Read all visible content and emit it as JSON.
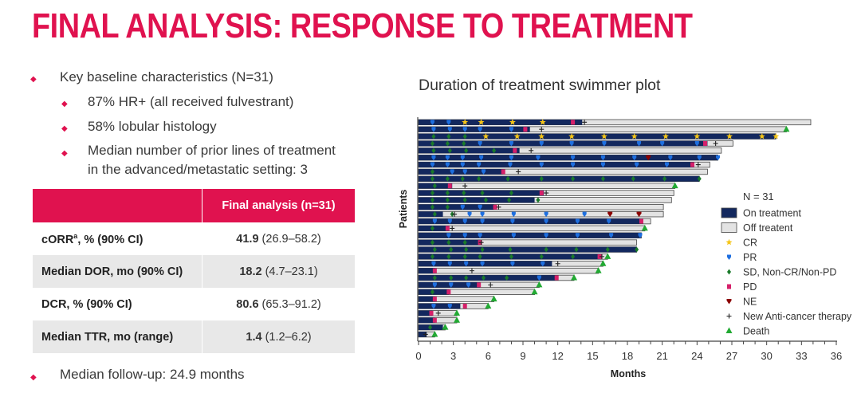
{
  "slide": {
    "title": "FINAL ANALYSIS: RESPONSE TO TREATMENT",
    "bullets": [
      {
        "text": "Key baseline characteristics (N=31)",
        "level": 1
      },
      {
        "text": "87% HR+ (all received fulvestrant)",
        "level": 2
      },
      {
        "text": "58% lobular histology",
        "level": 2
      },
      {
        "text": "Median number of prior lines of treatment",
        "level": 2
      },
      {
        "text": "in the advanced/metastatic setting: 3",
        "level": 2
      }
    ],
    "footer_bullet": "Median follow-up: 24.9 months",
    "accent_color": "#e0124f"
  },
  "table": {
    "header": [
      "",
      "Final analysis (n=31)"
    ],
    "rows": [
      {
        "label": "cORR",
        "sup": "a",
        "label_rest": ", % (90% CI)",
        "value": "41.9",
        "ci": "(26.9–58.2)"
      },
      {
        "label": "Median DOR, mo (90% CI)",
        "sup": "",
        "label_rest": "",
        "value": "18.2",
        "ci": "(4.7–23.1)"
      },
      {
        "label": "DCR, % (90% CI)",
        "sup": "",
        "label_rest": "",
        "value": "80.6",
        "ci": "(65.3–91.2)"
      },
      {
        "label": "Median TTR, mo (range)",
        "sup": "",
        "label_rest": "",
        "value": "1.4",
        "ci": "(1.2–6.2)"
      }
    ]
  },
  "chart_data": {
    "type": "swimmer",
    "title": "Duration of treatment swimmer plot",
    "xlabel": "Months",
    "ylabel": "Patients",
    "xlim": [
      0,
      36
    ],
    "xticks": [
      0,
      3,
      6,
      9,
      12,
      15,
      18,
      21,
      24,
      27,
      30,
      33,
      36
    ],
    "legend": {
      "heading": "N = 31",
      "position": "right",
      "items": [
        {
          "key": "on",
          "label": "On treatment",
          "color": "#13285e"
        },
        {
          "key": "off",
          "label": "Off treatent",
          "color": "#e3e3e3"
        },
        {
          "key": "CR",
          "label": "CR",
          "color": "#f5c518"
        },
        {
          "key": "PR",
          "label": "PR",
          "color": "#1e6fe0"
        },
        {
          "key": "SD",
          "label": "SD, Non-CR/Non-PD",
          "color": "#1a7a2a"
        },
        {
          "key": "PD",
          "label": "PD",
          "color": "#d6206a"
        },
        {
          "key": "NE",
          "label": "NE",
          "color": "#8b0000"
        },
        {
          "key": "NEW",
          "label": "New Anti-cancer therapy",
          "color": "#222222"
        },
        {
          "key": "DEATH",
          "label": "Death",
          "color": "#22aa33"
        }
      ]
    },
    "patients": [
      {
        "on": 14.1,
        "total": 33.8,
        "markers": [
          [
            1.2,
            "PR"
          ],
          [
            2.6,
            "PR"
          ],
          [
            4,
            "CR"
          ],
          [
            5.4,
            "CR"
          ],
          [
            8.1,
            "CR"
          ],
          [
            10.7,
            "CR"
          ],
          [
            13.3,
            "PD"
          ],
          [
            14.3,
            "NEW"
          ]
        ]
      },
      {
        "on": 9.6,
        "total": 31.7,
        "markers": [
          [
            1.3,
            "PR"
          ],
          [
            2.7,
            "PR"
          ],
          [
            4,
            "PR"
          ],
          [
            5.3,
            "PR"
          ],
          [
            8,
            "PR"
          ],
          [
            9.2,
            "PD"
          ],
          [
            10.6,
            "NEW"
          ],
          [
            31.7,
            "DEATH"
          ]
        ]
      },
      {
        "on": 30.8,
        "total": 30.8,
        "markers": [
          [
            1.3,
            "SD"
          ],
          [
            2.6,
            "SD"
          ],
          [
            4,
            "SD"
          ],
          [
            5.8,
            "CR"
          ],
          [
            8.5,
            "CR"
          ],
          [
            10.6,
            "CR"
          ],
          [
            13.2,
            "CR"
          ],
          [
            16,
            "CR"
          ],
          [
            18.6,
            "CR"
          ],
          [
            21.3,
            "CR"
          ],
          [
            24,
            "CR"
          ],
          [
            26.8,
            "CR"
          ],
          [
            29.6,
            "CR"
          ],
          [
            30.8,
            "CR"
          ]
        ]
      },
      {
        "on": 24.9,
        "total": 27.1,
        "markers": [
          [
            1.2,
            "SD"
          ],
          [
            2.5,
            "SD"
          ],
          [
            3.9,
            "SD"
          ],
          [
            5.3,
            "PR"
          ],
          [
            8,
            "PR"
          ],
          [
            10.6,
            "PR"
          ],
          [
            13.2,
            "PR"
          ],
          [
            16,
            "PR"
          ],
          [
            19,
            "PR"
          ],
          [
            21,
            "PR"
          ],
          [
            24,
            "PR"
          ],
          [
            24.7,
            "PD"
          ],
          [
            25.6,
            "NEW"
          ]
        ]
      },
      {
        "on": 8.7,
        "total": 26.1,
        "markers": [
          [
            1.3,
            "SD"
          ],
          [
            2.7,
            "SD"
          ],
          [
            4.1,
            "SD"
          ],
          [
            6.5,
            "SD"
          ],
          [
            8.3,
            "PD"
          ],
          [
            9.7,
            "NEW"
          ]
        ]
      },
      {
        "on": 25.8,
        "total": 25.8,
        "markers": [
          [
            1.3,
            "PR"
          ],
          [
            2.5,
            "PR"
          ],
          [
            3.8,
            "PR"
          ],
          [
            5.4,
            "PR"
          ],
          [
            8,
            "PR"
          ],
          [
            10.3,
            "PR"
          ],
          [
            13.3,
            "PR"
          ],
          [
            15.9,
            "PR"
          ],
          [
            18.6,
            "PR"
          ],
          [
            19.8,
            "NE"
          ],
          [
            21.7,
            "PR"
          ],
          [
            24.2,
            "PR"
          ],
          [
            25.8,
            "PR"
          ]
        ]
      },
      {
        "on": 23.7,
        "total": 25.1,
        "markers": [
          [
            1.2,
            "PR"
          ],
          [
            2.5,
            "PR"
          ],
          [
            3.8,
            "PR"
          ],
          [
            5.2,
            "PR"
          ],
          [
            7.9,
            "PR"
          ],
          [
            10.6,
            "PR"
          ],
          [
            13.3,
            "PR"
          ],
          [
            15.9,
            "PR"
          ],
          [
            18.8,
            "PR"
          ],
          [
            21.4,
            "PR"
          ],
          [
            23.6,
            "PD"
          ],
          [
            24.1,
            "NEW"
          ]
        ]
      },
      {
        "on": 7.3,
        "total": 24.9,
        "markers": [
          [
            1.2,
            "SD"
          ],
          [
            2.9,
            "PR"
          ],
          [
            4,
            "PR"
          ],
          [
            5.6,
            "PR"
          ],
          [
            7.3,
            "PD"
          ],
          [
            8.6,
            "NEW"
          ]
        ]
      },
      {
        "on": 24.2,
        "total": 24.2,
        "markers": [
          [
            1.2,
            "SD"
          ],
          [
            2.5,
            "SD"
          ],
          [
            3.8,
            "SD"
          ],
          [
            5.2,
            "SD"
          ],
          [
            7.7,
            "SD"
          ],
          [
            10.6,
            "SD"
          ],
          [
            13.3,
            "SD"
          ],
          [
            15.9,
            "SD"
          ],
          [
            18.5,
            "SD"
          ],
          [
            21.2,
            "SD"
          ],
          [
            24.2,
            "SD"
          ]
        ]
      },
      {
        "on": 2.9,
        "total": 22.1,
        "markers": [
          [
            1.4,
            "SD"
          ],
          [
            2.7,
            "PD"
          ],
          [
            4,
            "NEW"
          ],
          [
            22.1,
            "DEATH"
          ]
        ]
      },
      {
        "on": 10.8,
        "total": 22.0,
        "markers": [
          [
            1.2,
            "SD"
          ],
          [
            2.5,
            "SD"
          ],
          [
            3.9,
            "SD"
          ],
          [
            5.5,
            "SD"
          ],
          [
            8,
            "SD"
          ],
          [
            10.6,
            "PD"
          ],
          [
            11,
            "NEW"
          ]
        ]
      },
      {
        "on": 10.0,
        "total": 21.8,
        "markers": [
          [
            1.2,
            "SD"
          ],
          [
            2.5,
            "SD"
          ],
          [
            4,
            "SD"
          ],
          [
            5.8,
            "SD"
          ],
          [
            7.8,
            "SD"
          ],
          [
            10.3,
            "SD"
          ]
        ]
      },
      {
        "on": 6.5,
        "total": 21.1,
        "markers": [
          [
            1.2,
            "SD"
          ],
          [
            2.5,
            "SD"
          ],
          [
            3.8,
            "PR"
          ],
          [
            5.3,
            "PR"
          ],
          [
            6.6,
            "PD"
          ],
          [
            6.9,
            "NEW"
          ]
        ]
      },
      {
        "on": 2.1,
        "total": 21.1,
        "markers": [
          [
            1.4,
            "SD"
          ],
          [
            2.9,
            "SD"
          ],
          [
            3.1,
            "NEW"
          ],
          [
            4.4,
            "PR"
          ],
          [
            5.5,
            "PR"
          ],
          [
            8.2,
            "PR"
          ],
          [
            11,
            "PR"
          ],
          [
            14.3,
            "PR"
          ],
          [
            16.5,
            "NE"
          ],
          [
            19,
            "NE"
          ]
        ]
      },
      {
        "on": 19.1,
        "total": 20.0,
        "markers": [
          [
            1.4,
            "PR"
          ],
          [
            2.7,
            "PR"
          ],
          [
            4,
            "PR"
          ],
          [
            5.5,
            "PR"
          ],
          [
            8.1,
            "PR"
          ],
          [
            11,
            "PR"
          ],
          [
            13.7,
            "PR"
          ],
          [
            16.4,
            "PR"
          ],
          [
            19.2,
            "PD"
          ]
        ]
      },
      {
        "on": 2.6,
        "total": 19.5,
        "markers": [
          [
            1.2,
            "SD"
          ],
          [
            2.5,
            "PD"
          ],
          [
            2.9,
            "NEW"
          ],
          [
            19.5,
            "DEATH"
          ]
        ]
      },
      {
        "on": 19.2,
        "total": 19.2,
        "markers": [
          [
            2.6,
            "PR"
          ],
          [
            4,
            "PR"
          ],
          [
            5.3,
            "PR"
          ],
          [
            8.2,
            "PR"
          ],
          [
            11,
            "PR"
          ],
          [
            13.7,
            "PR"
          ],
          [
            16.6,
            "PR"
          ],
          [
            19.1,
            "PR"
          ]
        ]
      },
      {
        "on": 5.3,
        "total": 18.8,
        "markers": [
          [
            1.2,
            "SD"
          ],
          [
            2.6,
            "SD"
          ],
          [
            4,
            "SD"
          ],
          [
            5.3,
            "PD"
          ],
          [
            5.4,
            "NEW"
          ]
        ]
      },
      {
        "on": 18.8,
        "total": 18.8,
        "markers": [
          [
            1.4,
            "SD"
          ],
          [
            2.8,
            "SD"
          ],
          [
            4.1,
            "SD"
          ],
          [
            5.5,
            "SD"
          ],
          [
            7.9,
            "SD"
          ],
          [
            11,
            "SD"
          ],
          [
            13.6,
            "SD"
          ],
          [
            16.3,
            "SD"
          ],
          [
            18.8,
            "SD"
          ]
        ]
      },
      {
        "on": 15.6,
        "total": 16.3,
        "markers": [
          [
            1.2,
            "SD"
          ],
          [
            2.6,
            "SD"
          ],
          [
            4,
            "SD"
          ],
          [
            5.3,
            "SD"
          ],
          [
            8,
            "SD"
          ],
          [
            10.6,
            "SD"
          ],
          [
            13.3,
            "SD"
          ],
          [
            15.6,
            "PD"
          ],
          [
            15.8,
            "NEW"
          ],
          [
            16.3,
            "DEATH"
          ]
        ]
      },
      {
        "on": 11.5,
        "total": 15.9,
        "markers": [
          [
            1.3,
            "PR"
          ],
          [
            2.7,
            "PR"
          ],
          [
            4.1,
            "PR"
          ],
          [
            5.5,
            "PR"
          ],
          [
            8.1,
            "PR"
          ],
          [
            10.7,
            "PR"
          ],
          [
            12,
            "NEW"
          ],
          [
            15.9,
            "DEATH"
          ]
        ]
      },
      {
        "on": 1.4,
        "total": 15.5,
        "markers": [
          [
            1.4,
            "PD"
          ],
          [
            4.6,
            "NEW"
          ],
          [
            15.5,
            "DEATH"
          ]
        ]
      },
      {
        "on": 11.8,
        "total": 13.4,
        "markers": [
          [
            1.4,
            "SD"
          ],
          [
            2.8,
            "SD"
          ],
          [
            4.1,
            "SD"
          ],
          [
            5.6,
            "SD"
          ],
          [
            7.6,
            "SD"
          ],
          [
            10.4,
            "PR"
          ],
          [
            11.9,
            "PD"
          ],
          [
            13.4,
            "DEATH"
          ]
        ]
      },
      {
        "on": 5.3,
        "total": 10.4,
        "markers": [
          [
            1.4,
            "PR"
          ],
          [
            2.8,
            "PR"
          ],
          [
            4.3,
            "PR"
          ],
          [
            5.2,
            "PD"
          ],
          [
            6.2,
            "NEW"
          ],
          [
            10.4,
            "DEATH"
          ]
        ]
      },
      {
        "on": 2.6,
        "total": 10.0,
        "markers": [
          [
            1.2,
            "SD"
          ],
          [
            2.6,
            "PD"
          ],
          [
            10.0,
            "DEATH"
          ]
        ]
      },
      {
        "on": 1.4,
        "total": 6.5,
        "markers": [
          [
            1.4,
            "PD"
          ],
          [
            6.5,
            "DEATH"
          ]
        ]
      },
      {
        "on": 3.6,
        "total": 6.0,
        "markers": [
          [
            1.3,
            "PR"
          ],
          [
            2.7,
            "PR"
          ],
          [
            4,
            "PD"
          ],
          [
            6.0,
            "DEATH"
          ]
        ]
      },
      {
        "on": 1.2,
        "total": 3.3,
        "markers": [
          [
            1.1,
            "PD"
          ],
          [
            1.7,
            "NEW"
          ],
          [
            3.3,
            "DEATH"
          ]
        ]
      },
      {
        "on": 1.4,
        "total": 3.3,
        "markers": [
          [
            1.4,
            "PD"
          ],
          [
            3.3,
            "DEATH"
          ]
        ]
      },
      {
        "on": 2.1,
        "total": 2.3,
        "markers": [
          [
            1.0,
            "SD"
          ],
          [
            2.3,
            "DEATH"
          ]
        ]
      },
      {
        "on": 0.7,
        "total": 1.4,
        "markers": [
          [
            0.6,
            "NEW"
          ],
          [
            1.4,
            "DEATH"
          ]
        ]
      }
    ]
  }
}
